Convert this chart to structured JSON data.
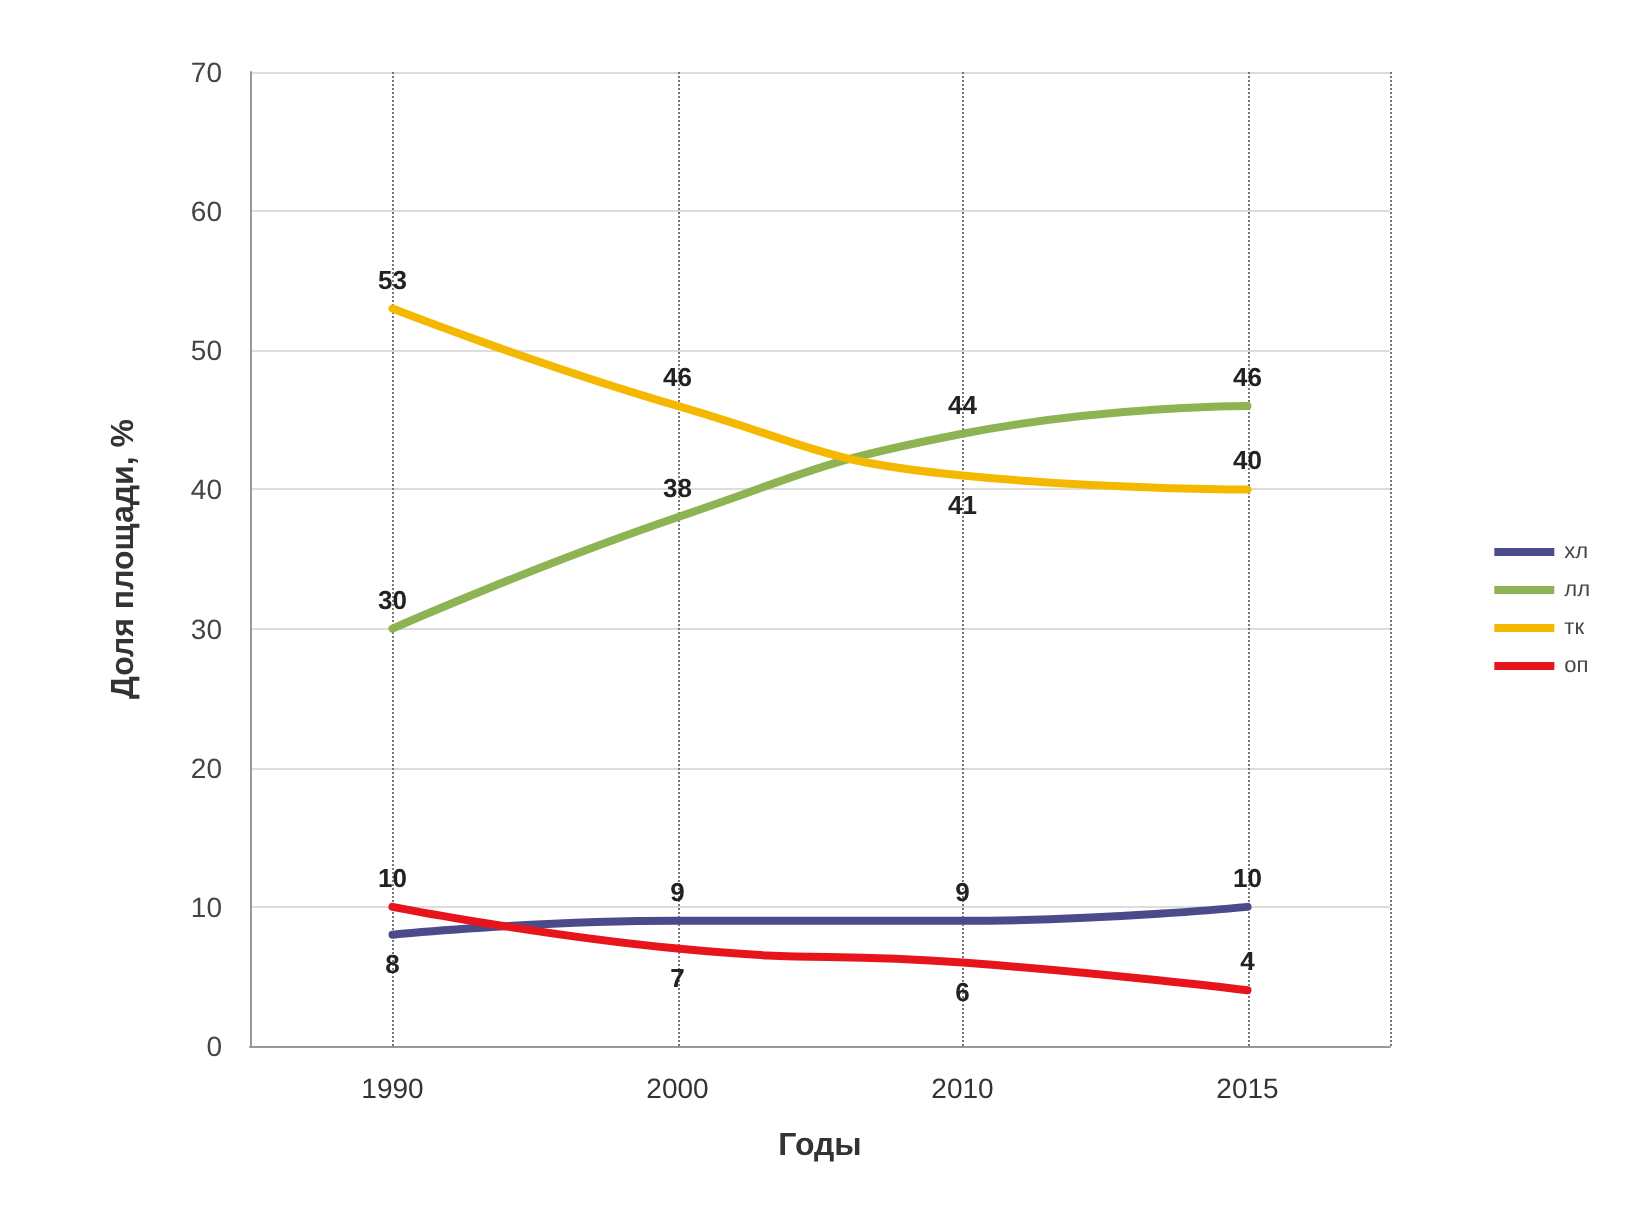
{
  "chart_data": {
    "type": "line",
    "xlabel": "Годы",
    "ylabel": "Доля площади, %",
    "categories": [
      "1990",
      "2000",
      "2010",
      "2015"
    ],
    "series": [
      {
        "name": "хл",
        "color": "#4b4a8a",
        "values": [
          8,
          9,
          9,
          10
        ]
      },
      {
        "name": "лл",
        "color": "#8db352",
        "values": [
          30,
          38,
          44,
          46
        ]
      },
      {
        "name": "тк",
        "color": "#f5b800",
        "values": [
          53,
          46,
          41,
          40
        ]
      },
      {
        "name": "оп",
        "color": "#e8141c",
        "values": [
          10,
          7,
          6,
          4
        ]
      }
    ],
    "ylim": [
      0,
      70
    ],
    "yticks": [
      0,
      10,
      20,
      30,
      40,
      50,
      60,
      70
    ],
    "grid": true,
    "legend": "right",
    "marker": "none",
    "line_style": "solid",
    "data_labels": true
  }
}
